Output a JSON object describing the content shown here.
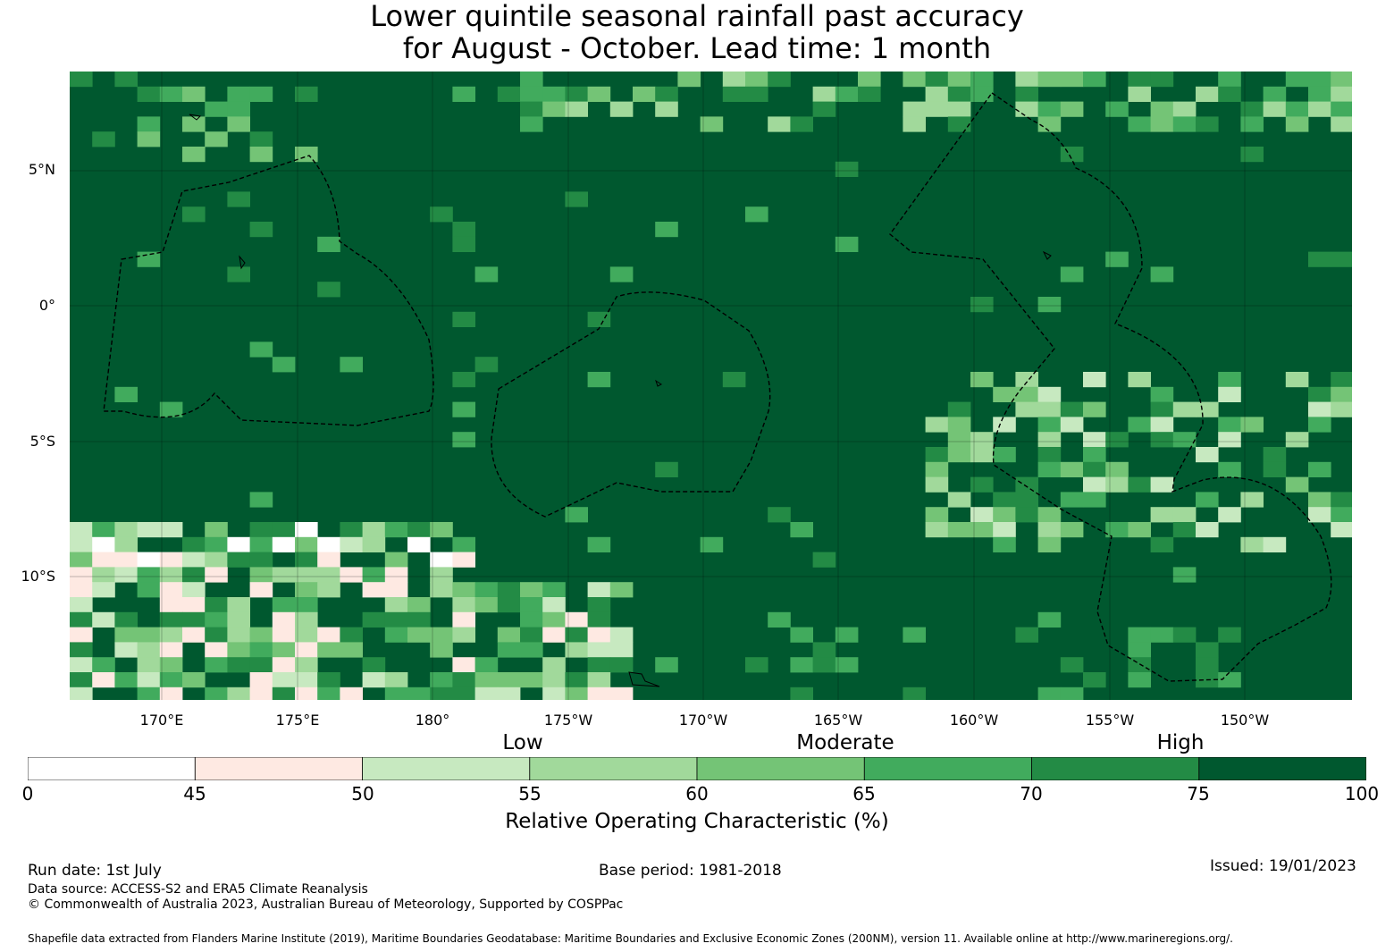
{
  "title_line1": "Lower quintile seasonal rainfall past accuracy",
  "title_line2": "for August - October. Lead time: 1 month",
  "map": {
    "lon_range": [
      -193,
      -145.5
    ],
    "lat_range": [
      -14.5,
      8.7
    ],
    "lat_labels": [
      "5°N",
      "0°",
      "5°S",
      "10°S"
    ],
    "lon_labels": [
      "170°E",
      "175°E",
      "180°",
      "175°W",
      "170°W",
      "165°W",
      "160°W",
      "155°W",
      "150°W"
    ],
    "grid_on": true,
    "base_color": "#00582f"
  },
  "colorbar": {
    "categories": [
      "Low",
      "Moderate",
      "High"
    ],
    "ticks": [
      "0",
      "45",
      "50",
      "55",
      "60",
      "65",
      "70",
      "75",
      "100"
    ],
    "bins": [
      {
        "from": 0,
        "to": 45,
        "color": "#ffffff"
      },
      {
        "from": 45,
        "to": 50,
        "color": "#fee9e2"
      },
      {
        "from": 50,
        "to": 55,
        "color": "#c7e9c0"
      },
      {
        "from": 55,
        "to": 60,
        "color": "#a1d99b"
      },
      {
        "from": 60,
        "to": 65,
        "color": "#74c476"
      },
      {
        "from": 65,
        "to": 70,
        "color": "#41ab5d"
      },
      {
        "from": 70,
        "to": 75,
        "color": "#238b45"
      },
      {
        "from": 75,
        "to": 100,
        "color": "#00582f"
      }
    ],
    "title": "Relative Operating Characteristic (%)"
  },
  "footer": {
    "run_date": "Run date: 1st July",
    "base_period": "Base period: 1981-2018",
    "issued": "Issued: 19/01/2023",
    "data_source": "Data source: ACCESS-S2 and ERA5 Climate Reanalysis",
    "copyright": "© Commonwealth of Australia 2023, Australian Bureau of Meteorology, Supported by COSPPac",
    "shapefile": "Shapefile data extracted from Flanders Marine Institute (2019), Maritime Boundaries Geodatabase: Maritime Boundaries and Exclusive Economic Zones (200NM), version 11. Available online at http://www.marineregions.org/."
  }
}
